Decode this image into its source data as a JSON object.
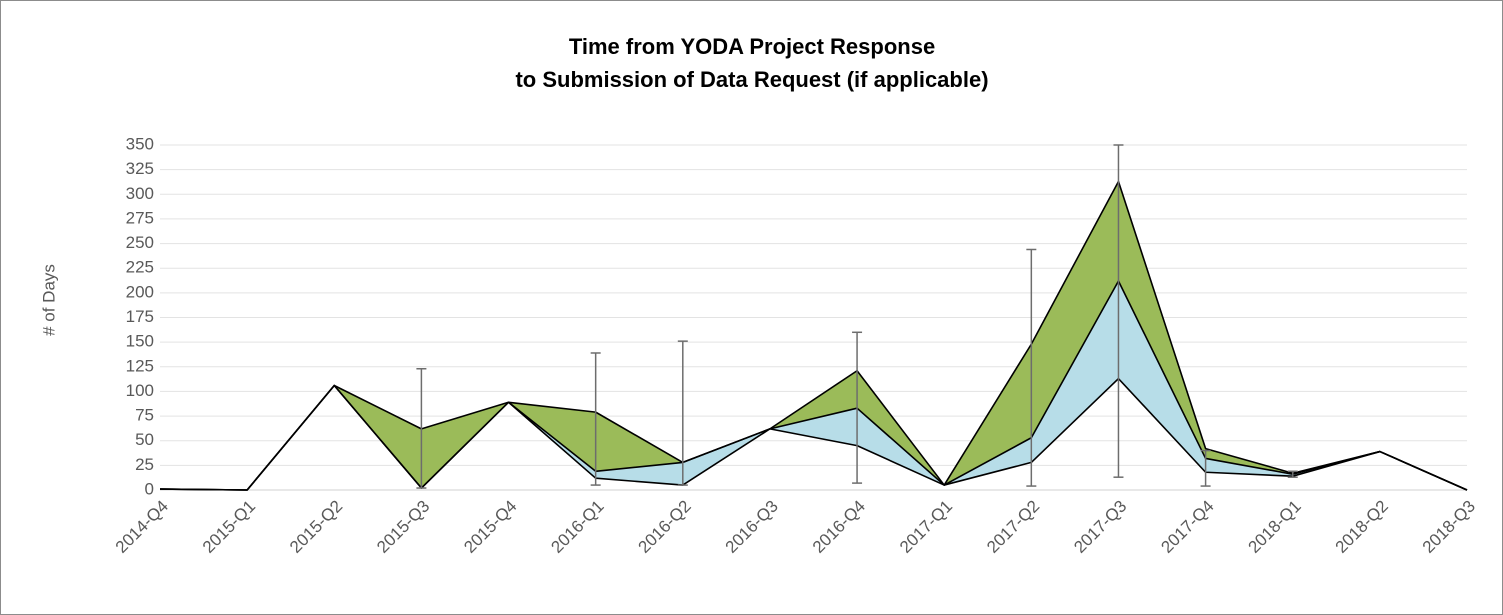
{
  "chart_data": {
    "type": "stacked_area_line",
    "title": [
      "Time from YODA Project Response",
      "to Submission of Data Request (if applicable)"
    ],
    "y_label": "# of Days",
    "categories": [
      "2014-Q4",
      "2015-Q1",
      "2015-Q2",
      "2015-Q3",
      "2015-Q4",
      "2016-Q1",
      "2016-Q2",
      "2016-Q3",
      "2016-Q4",
      "2017-Q1",
      "2017-Q2",
      "2017-Q3",
      "2017-Q4",
      "2018-Q1",
      "2018-Q2",
      "2018-Q3"
    ],
    "series": [
      {
        "color": "none",
        "values": [
          1,
          0,
          106,
          2,
          89,
          12,
          5,
          62,
          45,
          5,
          28,
          113,
          18,
          14,
          39,
          0
        ]
      },
      {
        "color": "#b7dde8",
        "values": [
          0,
          0,
          0,
          0,
          0,
          7,
          23,
          0,
          38,
          0,
          25,
          99,
          14,
          2,
          0,
          0
        ]
      },
      {
        "color": "#9bbb59",
        "values": [
          0,
          0,
          0,
          60,
          0,
          60,
          0,
          0,
          38,
          0,
          95,
          101,
          10,
          1,
          0,
          0
        ]
      }
    ],
    "error_bars": {
      "color": "#6d6d6d",
      "low": [
        null,
        null,
        null,
        2,
        null,
        5,
        5,
        null,
        7,
        null,
        4,
        13,
        4,
        13,
        null,
        null
      ],
      "high": [
        null,
        null,
        null,
        123,
        null,
        139,
        151,
        null,
        160,
        null,
        244,
        350,
        40,
        19,
        null,
        null
      ]
    },
    "ylim": [
      0,
      350
    ],
    "yticks": [
      0,
      25,
      50,
      75,
      100,
      125,
      150,
      175,
      200,
      225,
      250,
      275,
      300,
      325,
      350
    ],
    "grid": true
  }
}
